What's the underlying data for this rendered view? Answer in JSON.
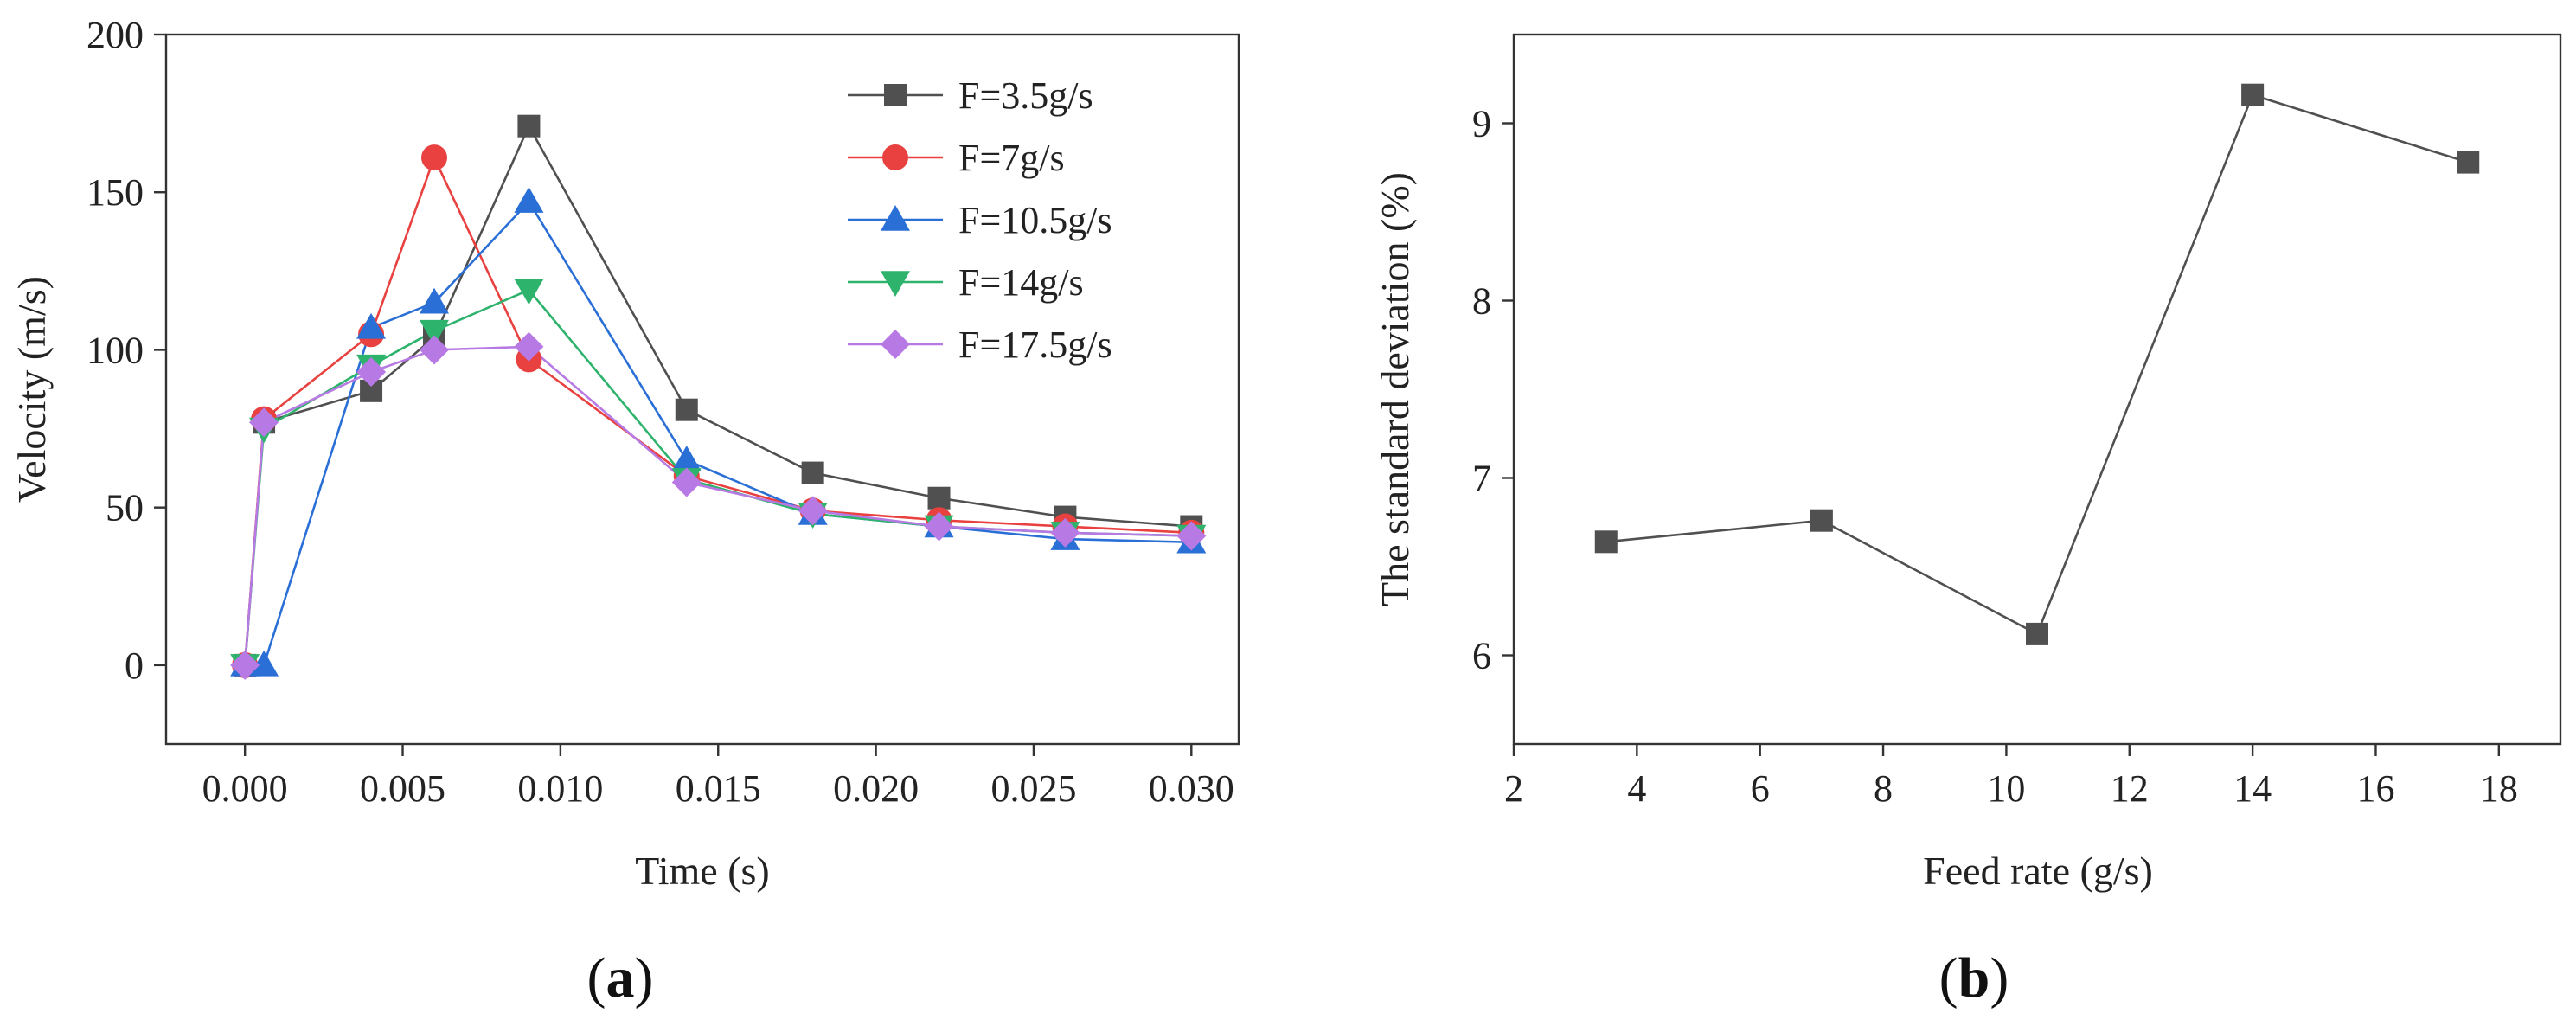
{
  "chart_data": [
    {
      "type": "line",
      "panel_label": "a",
      "title": "",
      "xlabel": "Time (s)",
      "ylabel": "Velocity (m/s)",
      "xlim": [
        -0.0025,
        0.0315
      ],
      "ylim": [
        -25,
        200
      ],
      "xticks": [
        0.0,
        0.005,
        0.01,
        0.015,
        0.02,
        0.025,
        0.03
      ],
      "xtick_labels": [
        "0.000",
        "0.005",
        "0.010",
        "0.015",
        "0.020",
        "0.025",
        "0.030"
      ],
      "yticks": [
        0,
        50,
        100,
        150,
        200
      ],
      "ytick_labels": [
        "0",
        "50",
        "100",
        "150",
        "200"
      ],
      "legend_position": "top-right",
      "grid": false,
      "series": [
        {
          "name": "F=3.5g/s",
          "color": "#505050",
          "marker": "square",
          "x": [
            0.0,
            0.0006,
            0.004,
            0.006,
            0.009,
            0.014,
            0.018,
            0.022,
            0.026,
            0.03
          ],
          "y": [
            0,
            77,
            87,
            104,
            171,
            81,
            61,
            53,
            47,
            44
          ]
        },
        {
          "name": "F=7g/s",
          "color": "#e8413f",
          "marker": "circle",
          "x": [
            0.0,
            0.0006,
            0.004,
            0.006,
            0.009,
            0.014,
            0.018,
            0.022,
            0.026,
            0.03
          ],
          "y": [
            0,
            78,
            105,
            161,
            97,
            60,
            49,
            46,
            44,
            42
          ]
        },
        {
          "name": "F=10.5g/s",
          "color": "#2a6fd6",
          "marker": "triangle-up",
          "x": [
            0.0,
            0.0006,
            0.004,
            0.006,
            0.009,
            0.014,
            0.018,
            0.022,
            0.026,
            0.03
          ],
          "y": [
            0,
            0,
            107,
            115,
            147,
            65,
            48,
            44,
            40,
            39
          ]
        },
        {
          "name": "F=14g/s",
          "color": "#2eb36d",
          "marker": "triangle-down",
          "x": [
            0.0,
            0.0006,
            0.004,
            0.006,
            0.009,
            0.014,
            0.018,
            0.022,
            0.026,
            0.03
          ],
          "y": [
            0,
            75,
            95,
            106,
            119,
            59,
            48,
            44,
            42,
            41
          ]
        },
        {
          "name": "F=17.5g/s",
          "color": "#b779e3",
          "marker": "diamond",
          "x": [
            0.0,
            0.0006,
            0.004,
            0.006,
            0.009,
            0.014,
            0.018,
            0.022,
            0.026,
            0.03
          ],
          "y": [
            0,
            77,
            93,
            100,
            101,
            58,
            49,
            44,
            42,
            41
          ]
        }
      ]
    },
    {
      "type": "line",
      "panel_label": "b",
      "title": "",
      "xlabel": "Feed rate (g/s)",
      "ylabel": "The standard deviation (%)",
      "xlim": [
        2,
        19
      ],
      "ylim": [
        5.5,
        9.5
      ],
      "xticks": [
        2,
        4,
        6,
        8,
        10,
        12,
        14,
        16,
        18
      ],
      "xtick_labels": [
        "2",
        "4",
        "6",
        "8",
        "10",
        "12",
        "14",
        "16",
        "18"
      ],
      "yticks": [
        6,
        7,
        8,
        9
      ],
      "ytick_labels": [
        "6",
        "7",
        "8",
        "9"
      ],
      "grid": false,
      "series": [
        {
          "name": "standard deviation",
          "color": "#505050",
          "marker": "square",
          "x": [
            3.5,
            7,
            10.5,
            14,
            17.5
          ],
          "y": [
            6.64,
            6.76,
            6.12,
            9.16,
            8.78
          ]
        }
      ]
    }
  ]
}
